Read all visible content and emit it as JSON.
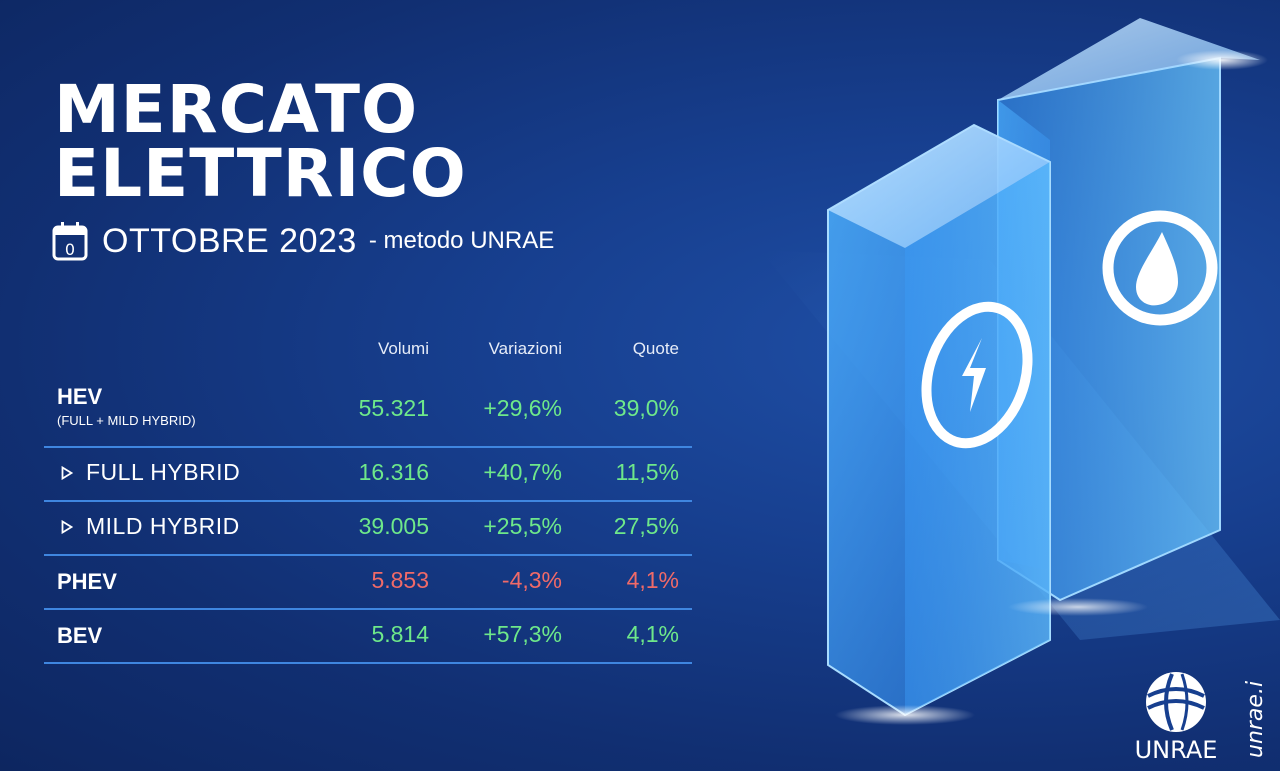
{
  "title": {
    "line1": "MERCATO",
    "line2": "ELETTRICO"
  },
  "subtitle": {
    "period": "OTTOBRE 2023",
    "method": "- metodo UNRAE"
  },
  "icons": {
    "calendar": "calendar-icon",
    "bolt": "lightning-bolt-icon",
    "drop": "fuel-drop-icon",
    "triangle": "triangle-right-icon"
  },
  "columns": {
    "volumes": "Volumi",
    "changes": "Variazioni",
    "shares": "Quote"
  },
  "rows": {
    "hev": {
      "label": "HEV",
      "note": "(FULL + MILD HYBRID)",
      "volume": "55.321",
      "change": "+29,6%",
      "share": "39,0%"
    },
    "full_hybrid": {
      "label": "FULL HYBRID",
      "volume": "16.316",
      "change": "+40,7%",
      "share": "11,5%"
    },
    "mild_hybrid": {
      "label": "MILD HYBRID",
      "volume": "39.005",
      "change": "+25,5%",
      "share": "27,5%"
    },
    "phev": {
      "label": "PHEV",
      "volume": "5.853",
      "change": "-4,3%",
      "share": "4,1%"
    },
    "bev": {
      "label": "BEV",
      "volume": "5.814",
      "change": "+57,3%",
      "share": "4,1%"
    }
  },
  "brand": {
    "logo_text": "UNRAE",
    "url": "unrae.it"
  },
  "colors": {
    "positive": "#6ee88a",
    "negative": "#f06a68",
    "divider": "#3f86e0",
    "background": "#143a86"
  }
}
